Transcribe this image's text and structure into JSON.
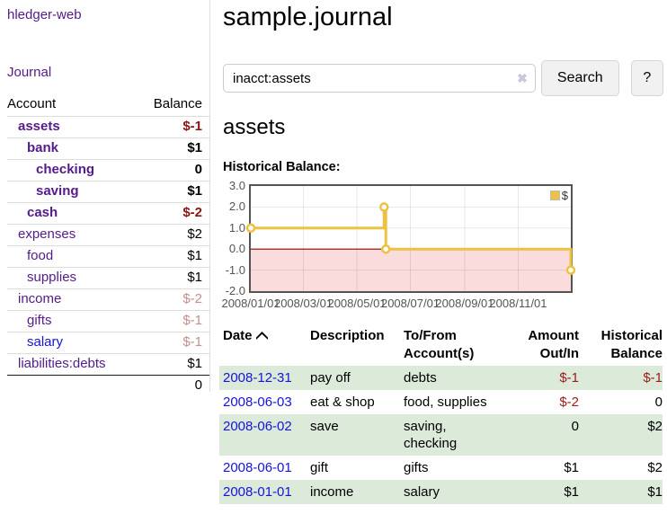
{
  "sidebar": {
    "app_title": "hledger-web",
    "journal_link": "Journal",
    "accounts_header": {
      "account": "Account",
      "balance": "Balance"
    },
    "accounts": [
      {
        "name": "assets",
        "balance": "$-1"
      },
      {
        "name": "bank",
        "balance": "$1"
      },
      {
        "name": "checking",
        "balance": "0"
      },
      {
        "name": "saving",
        "balance": "$1"
      },
      {
        "name": "cash",
        "balance": "$-2"
      },
      {
        "name": "expenses",
        "balance": "$2"
      },
      {
        "name": "food",
        "balance": "$1"
      },
      {
        "name": "supplies",
        "balance": "$1"
      },
      {
        "name": "income",
        "balance": "$-2"
      },
      {
        "name": "gifts",
        "balance": "$-1"
      },
      {
        "name": "salary",
        "balance": "$-1"
      },
      {
        "name": "liabilities:debts",
        "balance": "$1"
      }
    ],
    "total": "0"
  },
  "header": {
    "title": "sample.journal"
  },
  "search": {
    "value": "inacct:assets",
    "clear_icon": "✖",
    "button_label": "Search",
    "help_label": "?"
  },
  "account_page": {
    "title": "assets",
    "chart_label": "Historical Balance:"
  },
  "chart_data": {
    "type": "line",
    "title": "Historical Balance:",
    "legend": "$",
    "legend_position": "top-right",
    "series": [
      {
        "name": "$",
        "color": "#edc240",
        "step": true,
        "points": [
          {
            "date": "2008-01-01",
            "value": 1
          },
          {
            "date": "2008-06-01",
            "value": 2
          },
          {
            "date": "2008-06-03",
            "value": 0
          },
          {
            "date": "2008-12-31",
            "value": -1
          }
        ]
      }
    ],
    "x_range": [
      "2008-01-01",
      "2008-12-31"
    ],
    "ylim": [
      -2,
      3
    ],
    "y_ticks": [
      3,
      2,
      1,
      0,
      -1,
      -2
    ],
    "x_ticks": [
      "2008/01/01",
      "2008/03/01",
      "2008/05/01",
      "2008/07/01",
      "2008/09/01",
      "2008/11/01"
    ],
    "grid": true,
    "negative_region_color": "#fadcdc",
    "zero_line_color": "#8b0000",
    "grid_border_color": "#545454"
  },
  "register": {
    "headers": [
      "Date",
      "Description",
      "To/From Account(s)",
      "Amount Out/In",
      "Historical Balance"
    ],
    "rows": [
      {
        "date": "2008-12-31",
        "description": "pay off",
        "accounts": "debts",
        "amount": "$-1",
        "balance": "$-1"
      },
      {
        "date": "2008-06-03",
        "description": "eat & shop",
        "accounts": "food, supplies",
        "amount": "$-2",
        "balance": "0"
      },
      {
        "date": "2008-06-02",
        "description": "save",
        "accounts": "saving, checking",
        "amount": "0",
        "balance": "$2"
      },
      {
        "date": "2008-06-01",
        "description": "gift",
        "accounts": "gifts",
        "amount": "$1",
        "balance": "$2"
      },
      {
        "date": "2008-01-01",
        "description": "income",
        "accounts": "salary",
        "amount": "$1",
        "balance": "$1"
      }
    ]
  },
  "colors": {
    "link_purple": "#551a8b",
    "link_blue": "#1414dd",
    "negative_strong": "#8b1414",
    "negative_pale": "#c58f8f",
    "negative_table": "#9e1a1a",
    "row_stripe_green": "#dceada",
    "series_gold": "#edc240"
  }
}
